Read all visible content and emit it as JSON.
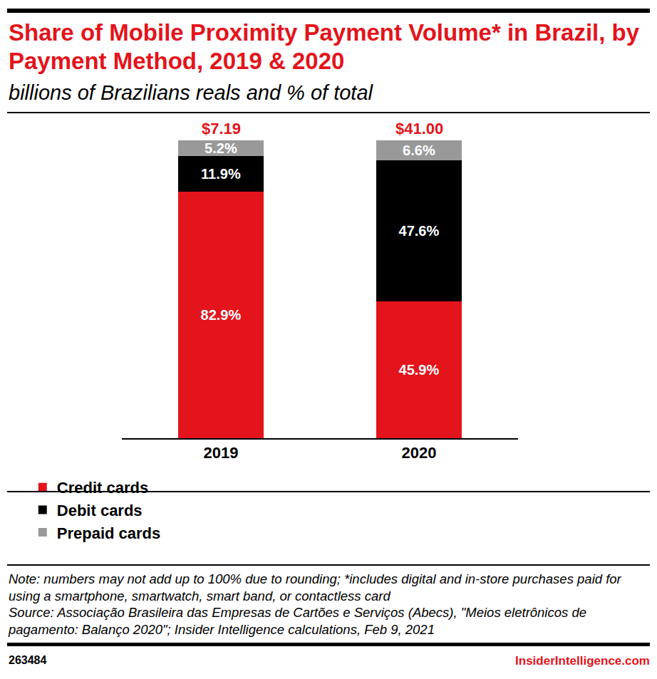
{
  "chart_data": {
    "type": "bar",
    "title": "Share of Mobile Proximity Payment Volume* in Brazil, by Payment Method, 2019 & 2020",
    "subtitle": "billions of Brazilians reals and % of total",
    "categories": [
      "2019",
      "2020"
    ],
    "series": [
      {
        "name": "Credit cards",
        "color": "#e3141b",
        "values": [
          82.9,
          45.9
        ],
        "value_labels": [
          "82.9%",
          "45.9%"
        ]
      },
      {
        "name": "Debit cards",
        "color": "#000000",
        "values": [
          11.9,
          47.6
        ],
        "value_labels": [
          "11.9%",
          "47.6%"
        ]
      },
      {
        "name": "Prepaid cards",
        "color": "#999999",
        "values": [
          5.2,
          6.6
        ],
        "value_labels": [
          "5.2%",
          "6.6%"
        ]
      }
    ],
    "totals": {
      "values": [
        7.19,
        41.0
      ],
      "value_labels": [
        "$7.19",
        "$41.00"
      ],
      "color": "#e3141b"
    },
    "ylim": [
      0,
      100.1
    ],
    "yticks": [],
    "stacked": true,
    "data_labels": true,
    "grid": false,
    "legend": "bottom",
    "tick_labels": "x"
  },
  "note": "Note: numbers may not add up to 100% due to rounding; *includes digital and in-store purchases paid for using a smartphone, smartwatch, smart band, or contactless card",
  "source": "Source: Associação Brasileira das Empresas de Cartões e Serviços (Abecs), \"Meios eletrônicos de pagamento: Balanço 2020\"; Insider Intelligence calculations, Feb 9, 2021",
  "chart_id": "263484",
  "brand": "InsiderIntelligence.com"
}
